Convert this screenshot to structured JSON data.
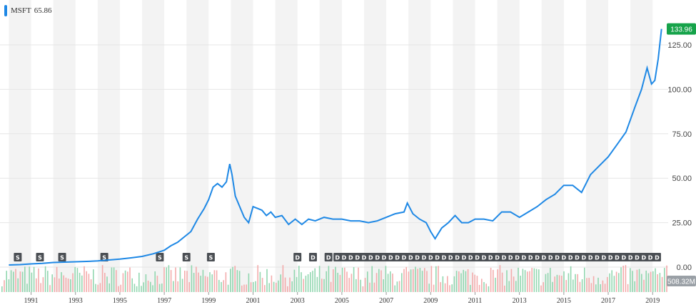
{
  "legend": {
    "symbol": "MSFT",
    "value": "65.86"
  },
  "colors": {
    "line": "#1e88e5",
    "last_flag": "#16a34a",
    "volume_flag": "#9aa0a6",
    "vol_up": "#86d3a7",
    "vol_down": "#f3a3a3",
    "band": "#f3f3f3",
    "event": "#4b4f54"
  },
  "chart_data": {
    "type": "line",
    "series": [
      {
        "name": "MSFT",
        "x": [
          1990.0,
          1990.5,
          1991.0,
          1991.5,
          1992.0,
          1992.5,
          1993.0,
          1993.5,
          1994.0,
          1994.5,
          1995.0,
          1995.5,
          1996.0,
          1996.5,
          1997.0,
          1997.3,
          1997.6,
          1997.9,
          1998.2,
          1998.5,
          1998.8,
          1999.0,
          1999.2,
          1999.4,
          1999.6,
          1999.8,
          1999.95,
          2000.05,
          2000.2,
          2000.4,
          2000.6,
          2000.8,
          2001.0,
          2001.2,
          2001.4,
          2001.6,
          2001.8,
          2002.0,
          2002.3,
          2002.6,
          2002.9,
          2003.2,
          2003.5,
          2003.8,
          2004.2,
          2004.6,
          2005.0,
          2005.4,
          2005.8,
          2006.2,
          2006.6,
          2007.0,
          2007.4,
          2007.8,
          2007.95,
          2008.2,
          2008.5,
          2008.8,
          2009.0,
          2009.2,
          2009.5,
          2009.8,
          2010.1,
          2010.4,
          2010.7,
          2011.0,
          2011.4,
          2011.8,
          2012.2,
          2012.6,
          2013.0,
          2013.4,
          2013.8,
          2014.2,
          2014.6,
          2015.0,
          2015.4,
          2015.8,
          2016.2,
          2016.6,
          2017.0,
          2017.4,
          2017.8,
          2018.2,
          2018.5,
          2018.75,
          2018.95,
          2019.1,
          2019.25,
          2019.4
        ],
        "y": [
          1.2,
          1.4,
          1.8,
          2.1,
          2.6,
          2.8,
          3.0,
          3.2,
          3.5,
          4.0,
          4.5,
          5.2,
          6.0,
          7.5,
          9.5,
          12,
          14,
          17,
          20,
          27,
          33,
          38,
          45,
          47,
          45,
          48,
          58,
          52,
          40,
          34,
          28,
          25,
          34,
          33,
          32,
          29,
          31,
          28,
          29,
          24,
          27,
          24,
          27,
          26,
          28,
          27,
          27,
          26,
          26,
          25,
          26,
          28,
          30,
          31,
          36,
          30,
          27,
          25,
          20,
          16,
          22,
          25,
          29,
          25,
          25,
          27,
          27,
          26,
          31,
          31,
          28,
          31,
          34,
          38,
          41,
          46,
          46,
          42,
          52,
          57,
          62,
          69,
          76,
          90,
          100,
          112,
          103,
          105,
          117,
          133.96
        ]
      }
    ],
    "xlim": [
      1989.6,
      2019.7
    ],
    "ylim": [
      0,
      140
    ],
    "y_ticks": [
      "0.00",
      "25.00",
      "50.00",
      "75.00",
      "100.00",
      "125.00"
    ],
    "x_ticks": [
      "1991",
      "1993",
      "1995",
      "1997",
      "1999",
      "2001",
      "2003",
      "2005",
      "2007",
      "2009",
      "2011",
      "2013",
      "2015",
      "2017",
      "2019"
    ],
    "last_value_label": "133.96",
    "volume_label": "508.32M",
    "event_markers": {
      "splits": {
        "label": "S",
        "x": [
          1990.4,
          1991.4,
          1992.4,
          1994.3,
          1996.8,
          1998.0,
          1999.1
        ]
      },
      "dividends": {
        "label": "D",
        "x": [
          2003.0,
          2003.7,
          2004.4,
          2004.8,
          2005.1,
          2005.4,
          2005.7,
          2006.0,
          2006.3,
          2006.6,
          2006.9,
          2007.2,
          2007.5,
          2007.8,
          2008.1,
          2008.4,
          2008.7,
          2009.0,
          2009.3,
          2009.6,
          2009.9,
          2010.2,
          2010.5,
          2010.8,
          2011.1,
          2011.4,
          2011.7,
          2012.0,
          2012.3,
          2012.6,
          2012.9,
          2013.2,
          2013.5,
          2013.8,
          2014.1,
          2014.4,
          2014.7,
          2015.0,
          2015.3,
          2015.6,
          2015.9,
          2016.2,
          2016.5,
          2016.8,
          2017.1,
          2017.4,
          2017.7,
          2018.0,
          2018.3,
          2018.6,
          2018.9,
          2019.2
        ]
      }
    },
    "grid": true,
    "legend_position": "top-left"
  }
}
